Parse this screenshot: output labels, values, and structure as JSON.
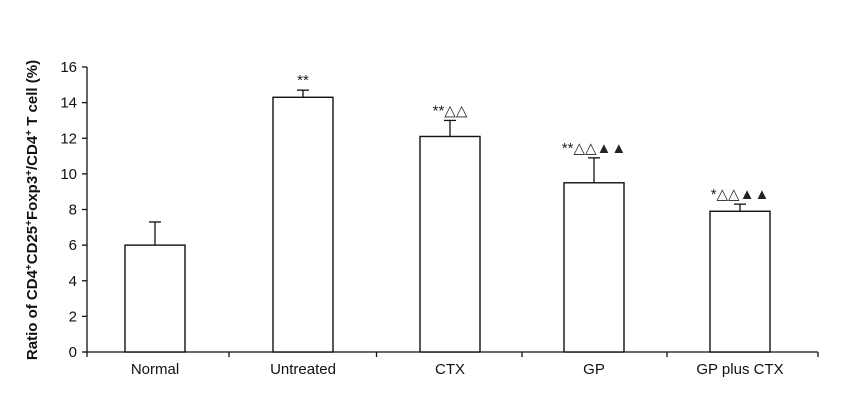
{
  "chart_data": {
    "type": "bar",
    "categories": [
      "Normal",
      "Untreated",
      "CTX",
      "GP",
      "GP plus CTX"
    ],
    "values": [
      6.0,
      14.3,
      12.1,
      9.5,
      7.9
    ],
    "errors": [
      1.3,
      0.4,
      0.9,
      1.4,
      0.4
    ],
    "annotations": [
      "",
      "**",
      "**△△",
      "**△△▲▲",
      "*△△▲▲"
    ],
    "ylabel_parts": [
      {
        "t": "Ratio of CD4",
        "sup": false
      },
      {
        "t": "+",
        "sup": true
      },
      {
        "t": "CD25",
        "sup": false
      },
      {
        "t": "+",
        "sup": true
      },
      {
        "t": "Foxp3",
        "sup": false
      },
      {
        "t": "+",
        "sup": true
      },
      {
        "t": "/CD4",
        "sup": false
      },
      {
        "t": "+",
        "sup": true
      },
      {
        "t": " T cell (%)",
        "sup": false
      }
    ],
    "ylim": [
      0,
      16
    ],
    "yticks": [
      0,
      2,
      4,
      6,
      8,
      10,
      12,
      14,
      16
    ],
    "grid": false
  }
}
